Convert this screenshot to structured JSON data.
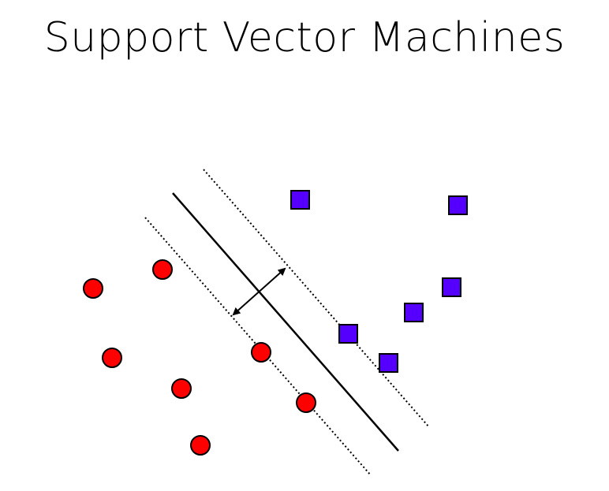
{
  "slide": {
    "title": "Support Vector Machines"
  },
  "colors": {
    "class_a_fill": "#ff0000",
    "class_b_fill": "#5500ff",
    "outline": "#000000",
    "line": "#000000"
  },
  "shapes": {
    "class_a": "circle",
    "class_b": "square"
  },
  "boundaries": {
    "decision_line": "solid",
    "margin_lines": "dotted"
  }
}
